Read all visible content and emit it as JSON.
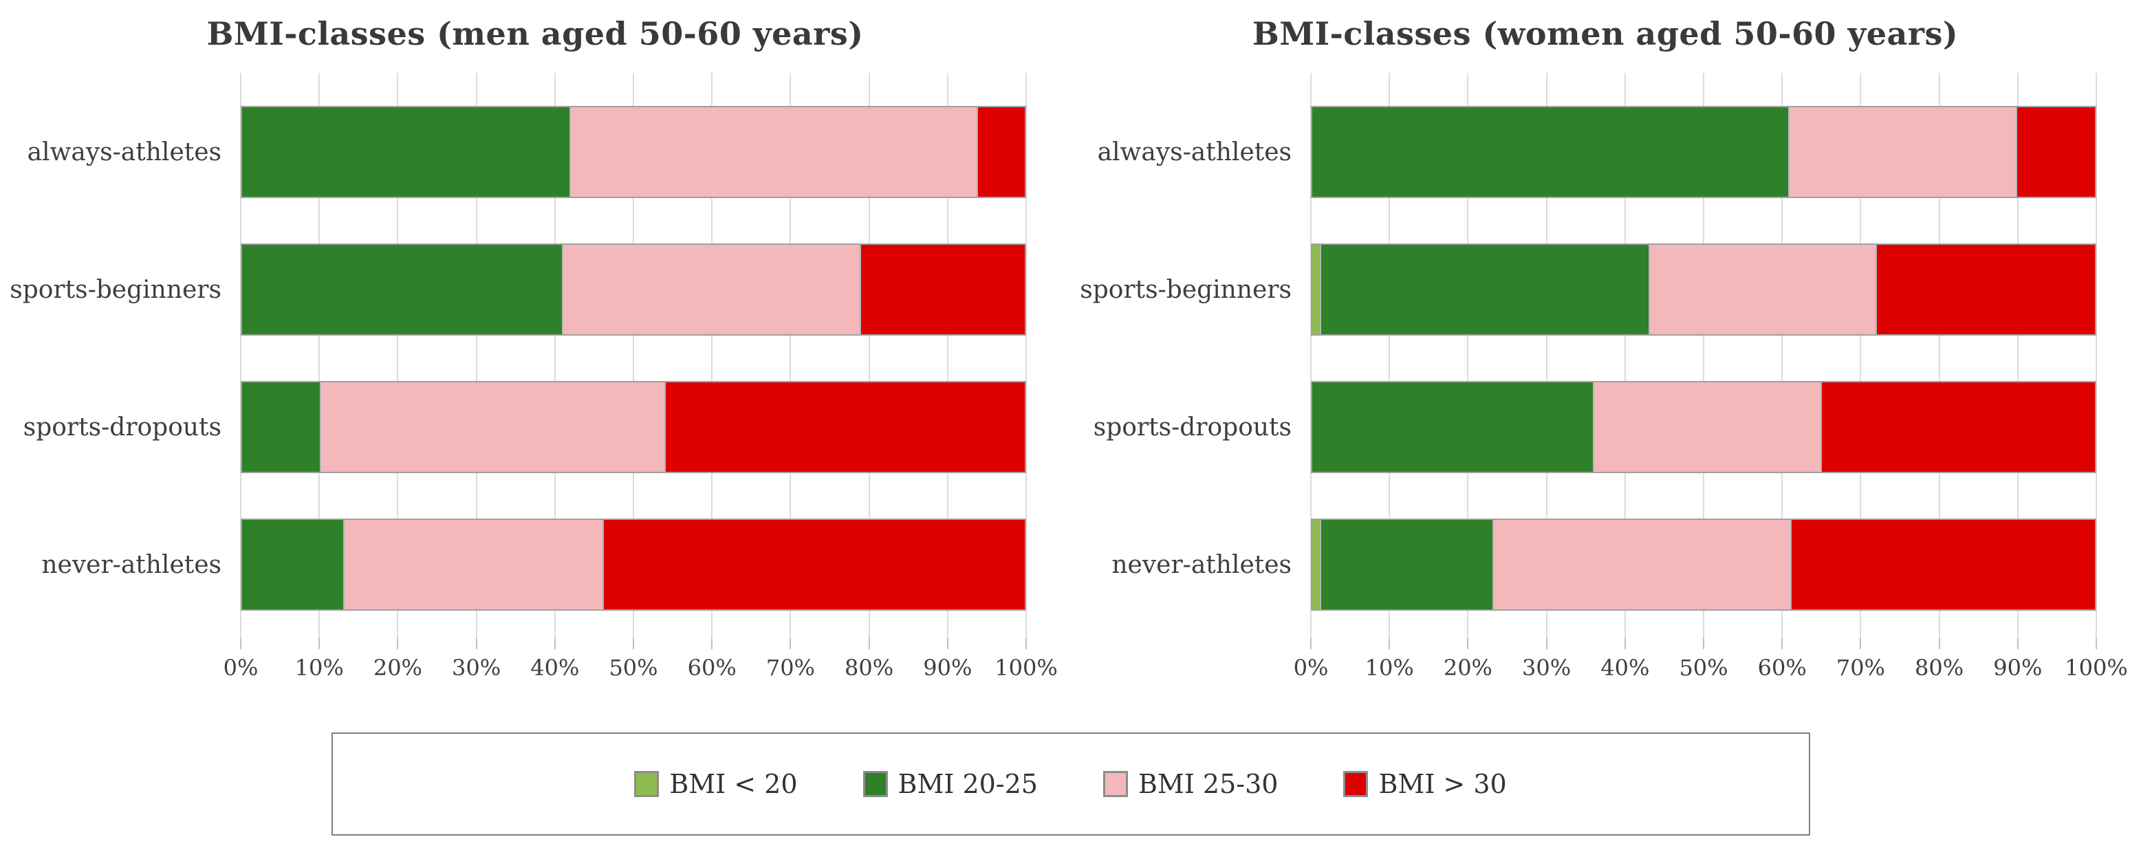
{
  "page": {
    "background": "#ffffff"
  },
  "colors": {
    "bmi_lt_20": "#8dbb4d",
    "bmi_20_25": "#2e8128",
    "bmi_25_30": "#f4b8bb",
    "bmi_gt_30": "#de0000",
    "gridline": "#dcdcdc",
    "bar_border": "#a0a0a0",
    "text": "#3f3f3f"
  },
  "legend": {
    "items": [
      {
        "label": "BMI < 20",
        "color": "#8dbb4d"
      },
      {
        "label": "BMI 20-25",
        "color": "#2e8128"
      },
      {
        "label": "BMI 25-30",
        "color": "#f4b8bb"
      },
      {
        "label": "BMI > 30",
        "color": "#de0000"
      }
    ]
  },
  "chart_data": [
    {
      "type": "bar",
      "stacked": true,
      "orientation": "horizontal",
      "title": "BMI-classes (men aged 50-60 years)",
      "categories": [
        "always-athletes",
        "sports-beginners",
        "sports-dropouts",
        "never-athletes"
      ],
      "series": [
        {
          "name": "BMI < 20",
          "values": [
            0,
            0,
            0,
            0
          ]
        },
        {
          "name": "BMI 20-25",
          "values": [
            42,
            41,
            10,
            13
          ]
        },
        {
          "name": "BMI 25-30",
          "values": [
            52,
            38,
            44,
            33
          ]
        },
        {
          "name": "BMI > 30",
          "values": [
            6,
            21,
            46,
            54
          ]
        }
      ],
      "xlim": [
        0,
        100
      ],
      "x_ticks": [
        "0%",
        "10%",
        "20%",
        "30%",
        "40%",
        "50%",
        "60%",
        "70%",
        "80%",
        "90%",
        "100%"
      ],
      "grid": true,
      "legend_position": "bottom-shared"
    },
    {
      "type": "bar",
      "stacked": true,
      "orientation": "horizontal",
      "title": "BMI-classes (women aged 50-60 years)",
      "categories": [
        "always-athletes",
        "sports-beginners",
        "sports-dropouts",
        "never-athletes"
      ],
      "series": [
        {
          "name": "BMI < 20",
          "values": [
            0,
            1,
            0,
            1
          ]
        },
        {
          "name": "BMI 20-25",
          "values": [
            61,
            42,
            36,
            22
          ]
        },
        {
          "name": "BMI 25-30",
          "values": [
            29,
            29,
            29,
            38
          ]
        },
        {
          "name": "BMI > 30",
          "values": [
            10,
            28,
            35,
            39
          ]
        }
      ],
      "xlim": [
        0,
        100
      ],
      "x_ticks": [
        "0%",
        "10%",
        "20%",
        "30%",
        "40%",
        "50%",
        "60%",
        "70%",
        "80%",
        "90%",
        "100%"
      ],
      "grid": true,
      "legend_position": "bottom-shared"
    }
  ]
}
